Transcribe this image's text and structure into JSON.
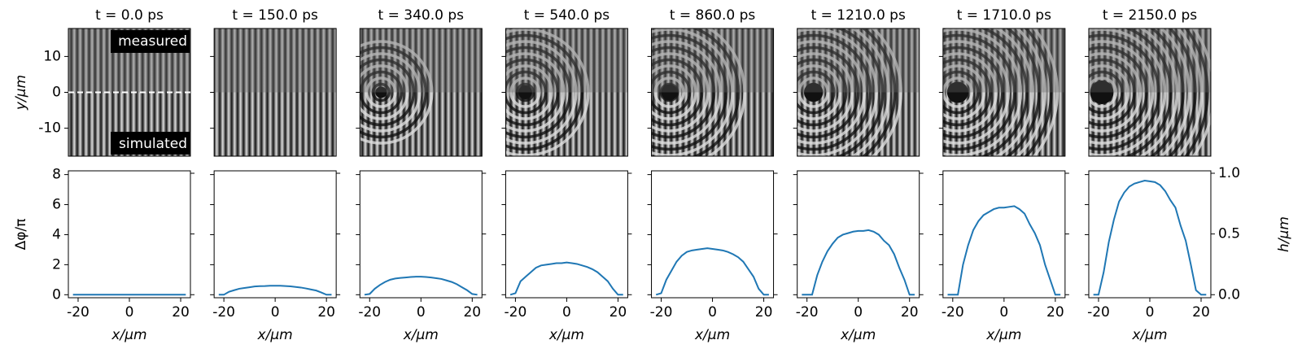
{
  "image_axes": {
    "ylabel": "y/µm",
    "ylim": [
      -17.8,
      17.8
    ],
    "yticks": [
      -10,
      0,
      10
    ],
    "top_label": "measured",
    "bottom_label": "simulated"
  },
  "chart_data": [
    {
      "type": "line",
      "title": "t = 0.0 ps",
      "xlabel": "x/µm",
      "ylabel": "Δφ/π",
      "color": "#1f77b4",
      "xlim": [
        -23.8,
        23.8
      ],
      "xticks": [
        -20,
        0,
        20
      ],
      "ylim": [
        -0.2,
        8.25
      ],
      "yticks": [
        0,
        2,
        4,
        6,
        8
      ],
      "y2lim": [
        -0.025,
        1.02
      ],
      "y2ticks": [
        {
          "value": 0,
          "label": "0.0"
        },
        {
          "value": 0.5,
          "label": "0.5"
        },
        {
          "value": 1,
          "label": "1.0"
        }
      ],
      "x": [
        -22,
        -20,
        -18,
        -16,
        -14,
        -12,
        -10,
        -8,
        -6,
        -4,
        -2,
        0,
        2,
        4,
        6,
        8,
        10,
        12,
        14,
        16,
        18,
        20,
        22
      ],
      "values": [
        0,
        0,
        0,
        0,
        0,
        0,
        0,
        0,
        0,
        0,
        0,
        0,
        0,
        0,
        0,
        0,
        0,
        0,
        0,
        0,
        0,
        0,
        0
      ]
    },
    {
      "type": "line",
      "title": "t = 150.0 ps",
      "xlabel": "x/µm",
      "color": "#1f77b4",
      "xlim": [
        -23.8,
        23.8
      ],
      "xticks": [
        -20,
        0,
        20
      ],
      "ylim": [
        -0.2,
        8.25
      ],
      "yticks": [
        0,
        2,
        4,
        6,
        8
      ],
      "y2lim": [
        -0.025,
        1.02
      ],
      "y2ticks": [
        {
          "value": 0,
          "label": "0.0"
        },
        {
          "value": 0.5,
          "label": "0.5"
        },
        {
          "value": 1,
          "label": "1.0"
        }
      ],
      "x": [
        -22,
        -20,
        -18,
        -16,
        -14,
        -12,
        -10,
        -8,
        -6,
        -4,
        -2,
        0,
        2,
        4,
        6,
        8,
        10,
        12,
        14,
        16,
        18,
        20,
        22
      ],
      "values": [
        0,
        0,
        0.2,
        0.3,
        0.4,
        0.45,
        0.5,
        0.55,
        0.57,
        0.58,
        0.6,
        0.6,
        0.6,
        0.58,
        0.56,
        0.52,
        0.48,
        0.42,
        0.35,
        0.28,
        0.15,
        0,
        0
      ]
    },
    {
      "type": "line",
      "title": "t = 340.0 ps",
      "xlabel": "x/µm",
      "color": "#1f77b4",
      "xlim": [
        -23.8,
        23.8
      ],
      "xticks": [
        -20,
        0,
        20
      ],
      "ylim": [
        -0.2,
        8.25
      ],
      "yticks": [
        0,
        2,
        4,
        6,
        8
      ],
      "y2lim": [
        -0.025,
        1.02
      ],
      "y2ticks": [
        {
          "value": 0,
          "label": "0.0"
        },
        {
          "value": 0.5,
          "label": "0.5"
        },
        {
          "value": 1,
          "label": "1.0"
        }
      ],
      "x": [
        -22,
        -20,
        -18,
        -16,
        -14,
        -12,
        -10,
        -8,
        -6,
        -4,
        -2,
        0,
        2,
        4,
        6,
        8,
        10,
        12,
        14,
        16,
        18,
        20,
        22
      ],
      "values": [
        0,
        0.05,
        0.4,
        0.65,
        0.85,
        1.0,
        1.08,
        1.12,
        1.15,
        1.18,
        1.2,
        1.2,
        1.18,
        1.15,
        1.1,
        1.05,
        0.95,
        0.85,
        0.7,
        0.5,
        0.3,
        0.05,
        0
      ]
    },
    {
      "type": "line",
      "title": "t = 540.0 ps",
      "xlabel": "x/µm",
      "color": "#1f77b4",
      "xlim": [
        -23.8,
        23.8
      ],
      "xticks": [
        -20,
        0,
        20
      ],
      "ylim": [
        -0.2,
        8.25
      ],
      "yticks": [
        0,
        2,
        4,
        6,
        8
      ],
      "y2lim": [
        -0.025,
        1.02
      ],
      "y2ticks": [
        {
          "value": 0,
          "label": "0.0"
        },
        {
          "value": 0.5,
          "label": "0.5"
        },
        {
          "value": 1,
          "label": "1.0"
        }
      ],
      "x": [
        -22,
        -20,
        -18,
        -16,
        -14,
        -12,
        -10,
        -8,
        -6,
        -4,
        -2,
        0,
        2,
        4,
        6,
        8,
        10,
        12,
        14,
        16,
        18,
        20,
        22
      ],
      "values": [
        0,
        0.1,
        0.9,
        1.2,
        1.5,
        1.8,
        1.95,
        2.0,
        2.05,
        2.1,
        2.1,
        2.15,
        2.1,
        2.05,
        1.95,
        1.85,
        1.7,
        1.5,
        1.2,
        0.9,
        0.4,
        0,
        0
      ]
    },
    {
      "type": "line",
      "title": "t = 860.0 ps",
      "xlabel": "x/µm",
      "color": "#1f77b4",
      "xlim": [
        -23.8,
        23.8
      ],
      "xticks": [
        -20,
        0,
        20
      ],
      "ylim": [
        -0.2,
        8.25
      ],
      "yticks": [
        0,
        2,
        4,
        6,
        8
      ],
      "y2lim": [
        -0.025,
        1.02
      ],
      "y2ticks": [
        {
          "value": 0,
          "label": "0.0"
        },
        {
          "value": 0.5,
          "label": "0.5"
        },
        {
          "value": 1,
          "label": "1.0"
        }
      ],
      "x": [
        -22,
        -20,
        -18,
        -16,
        -14,
        -12,
        -10,
        -8,
        -6,
        -4,
        -2,
        0,
        2,
        4,
        6,
        8,
        10,
        12,
        14,
        16,
        18,
        20,
        22
      ],
      "values": [
        0,
        0.1,
        1.0,
        1.6,
        2.2,
        2.6,
        2.85,
        2.95,
        3.0,
        3.05,
        3.1,
        3.05,
        3.0,
        2.95,
        2.85,
        2.7,
        2.5,
        2.2,
        1.7,
        1.2,
        0.4,
        0,
        0
      ]
    },
    {
      "type": "line",
      "title": "t = 1210.0 ps",
      "xlabel": "x/µm",
      "color": "#1f77b4",
      "xlim": [
        -23.8,
        23.8
      ],
      "xticks": [
        -20,
        0,
        20
      ],
      "ylim": [
        -0.2,
        8.25
      ],
      "yticks": [
        0,
        2,
        4,
        6,
        8
      ],
      "y2lim": [
        -0.025,
        1.02
      ],
      "y2ticks": [
        {
          "value": 0,
          "label": "0.0"
        },
        {
          "value": 0.5,
          "label": "0.5"
        },
        {
          "value": 1,
          "label": "1.0"
        }
      ],
      "x": [
        -22,
        -20,
        -18,
        -16,
        -14,
        -12,
        -10,
        -8,
        -6,
        -4,
        -2,
        0,
        2,
        4,
        6,
        8,
        10,
        12,
        14,
        16,
        18,
        20,
        22
      ],
      "values": [
        0,
        0,
        0,
        1.3,
        2.2,
        2.9,
        3.4,
        3.8,
        4.0,
        4.1,
        4.2,
        4.25,
        4.25,
        4.3,
        4.2,
        4.0,
        3.6,
        3.3,
        2.7,
        1.8,
        1.0,
        0,
        0
      ]
    },
    {
      "type": "line",
      "title": "t = 1710.0 ps",
      "xlabel": "x/µm",
      "color": "#1f77b4",
      "xlim": [
        -23.8,
        23.8
      ],
      "xticks": [
        -20,
        0,
        20
      ],
      "ylim": [
        -0.2,
        8.25
      ],
      "yticks": [
        0,
        2,
        4,
        6,
        8
      ],
      "y2lim": [
        -0.025,
        1.02
      ],
      "y2ticks": [
        {
          "value": 0,
          "label": "0.0"
        },
        {
          "value": 0.5,
          "label": "0.5"
        },
        {
          "value": 1,
          "label": "1.0"
        }
      ],
      "x": [
        -22,
        -20,
        -18,
        -16,
        -14,
        -12,
        -10,
        -8,
        -6,
        -4,
        -2,
        0,
        2,
        4,
        6,
        8,
        10,
        12,
        14,
        16,
        18,
        20,
        22
      ],
      "values": [
        0,
        0,
        0,
        2.0,
        3.3,
        4.3,
        4.9,
        5.3,
        5.5,
        5.7,
        5.8,
        5.8,
        5.85,
        5.9,
        5.7,
        5.4,
        4.7,
        4.1,
        3.3,
        2.0,
        1.0,
        0,
        0
      ]
    },
    {
      "type": "line",
      "title": "t = 2150.0 ps",
      "xlabel": "x/µm",
      "y2label": "h/µm",
      "color": "#1f77b4",
      "xlim": [
        -23.8,
        23.8
      ],
      "xticks": [
        -20,
        0,
        20
      ],
      "ylim": [
        -0.2,
        8.25
      ],
      "yticks": [
        0,
        2,
        4,
        6,
        8
      ],
      "y2lim": [
        -0.025,
        1.02
      ],
      "y2ticks": [
        {
          "value": 0,
          "label": "0.0"
        },
        {
          "value": 0.5,
          "label": "0.5"
        },
        {
          "value": 1,
          "label": "1.0"
        }
      ],
      "x": [
        -22,
        -20,
        -18,
        -16,
        -14,
        -12,
        -10,
        -8,
        -6,
        -4,
        -2,
        0,
        2,
        4,
        6,
        8,
        10,
        12,
        14,
        16,
        18,
        20,
        22
      ],
      "values": [
        0,
        0,
        1.5,
        3.5,
        5.0,
        6.2,
        6.8,
        7.2,
        7.4,
        7.5,
        7.6,
        7.55,
        7.5,
        7.3,
        6.9,
        6.3,
        5.8,
        4.6,
        3.6,
        2.0,
        0.3,
        0,
        0
      ]
    }
  ]
}
